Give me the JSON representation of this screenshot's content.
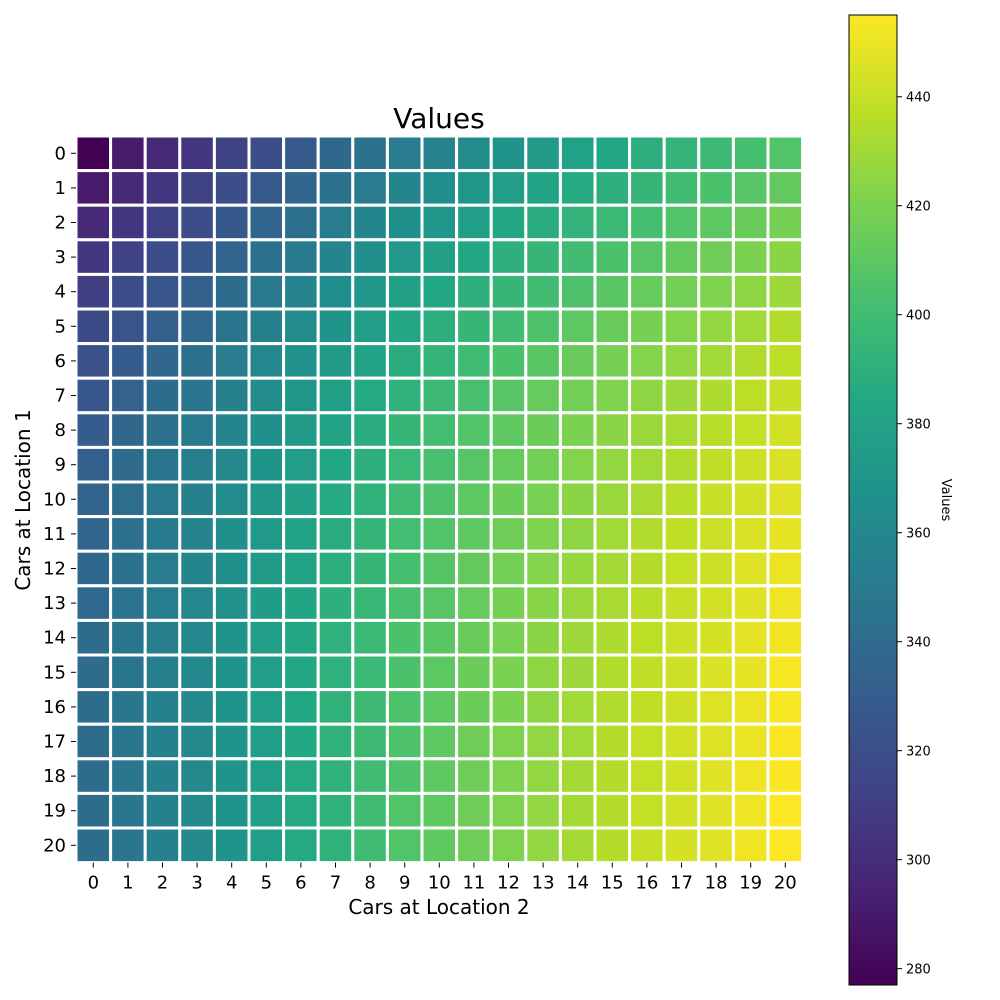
{
  "chart_data": [
    {
      "type": "heatmap",
      "title": "Values",
      "xlabel": "Cars at Location 2",
      "ylabel": "Cars at Location 1",
      "x_categories": [
        "0",
        "1",
        "2",
        "3",
        "4",
        "5",
        "6",
        "7",
        "8",
        "9",
        "10",
        "11",
        "12",
        "13",
        "14",
        "15",
        "16",
        "17",
        "18",
        "19",
        "20"
      ],
      "y_categories": [
        "0",
        "1",
        "2",
        "3",
        "4",
        "5",
        "6",
        "7",
        "8",
        "9",
        "10",
        "11",
        "12",
        "13",
        "14",
        "15",
        "16",
        "17",
        "18",
        "19",
        "20"
      ],
      "colormap": "viridis",
      "value_range": [
        277,
        455
      ],
      "grid_line_color": "#ffffff",
      "values": [
        [
          277,
          290,
          298,
          305,
          312,
          320,
          328,
          337,
          344,
          351,
          357,
          363,
          368,
          374,
          379,
          384,
          389,
          393,
          398,
          402,
          406
        ],
        [
          290,
          298,
          305,
          312,
          320,
          328,
          336,
          344,
          351,
          358,
          364,
          370,
          376,
          381,
          386,
          390,
          395,
          400,
          404,
          408,
          412
        ],
        [
          298,
          305,
          312,
          319,
          327,
          335,
          343,
          351,
          358,
          365,
          371,
          377,
          383,
          388,
          393,
          397,
          402,
          406,
          410,
          414,
          418
        ],
        [
          305,
          312,
          319,
          326,
          334,
          342,
          350,
          358,
          365,
          372,
          378,
          384,
          390,
          395,
          400,
          404,
          408,
          412,
          416,
          420,
          424
        ],
        [
          311,
          318,
          325,
          332,
          340,
          348,
          356,
          364,
          371,
          378,
          384,
          390,
          395,
          400,
          405,
          409,
          413,
          417,
          421,
          425,
          429
        ],
        [
          317,
          324,
          331,
          338,
          346,
          354,
          362,
          369,
          376,
          383,
          389,
          395,
          400,
          405,
          410,
          414,
          418,
          422,
          426,
          430,
          434
        ],
        [
          322,
          329,
          336,
          343,
          351,
          359,
          367,
          374,
          381,
          388,
          394,
          399,
          404,
          409,
          414,
          418,
          422,
          426,
          430,
          434,
          437
        ],
        [
          326,
          333,
          340,
          347,
          355,
          363,
          371,
          378,
          385,
          392,
          398,
          403,
          408,
          413,
          417,
          421,
          425,
          429,
          433,
          437,
          440
        ],
        [
          329,
          336,
          343,
          350,
          358,
          366,
          374,
          381,
          388,
          395,
          401,
          406,
          411,
          415,
          420,
          424,
          428,
          432,
          436,
          439,
          443
        ],
        [
          332,
          339,
          346,
          353,
          361,
          369,
          376,
          384,
          390,
          397,
          403,
          408,
          413,
          417,
          422,
          426,
          430,
          434,
          438,
          441,
          445
        ],
        [
          334,
          341,
          348,
          355,
          363,
          371,
          378,
          386,
          392,
          399,
          405,
          410,
          415,
          419,
          424,
          428,
          432,
          436,
          440,
          443,
          447
        ],
        [
          336,
          343,
          350,
          357,
          365,
          373,
          380,
          388,
          394,
          401,
          406,
          411,
          416,
          421,
          425,
          430,
          434,
          438,
          441,
          445,
          449
        ],
        [
          337,
          344,
          351,
          358,
          366,
          374,
          381,
          389,
          395,
          402,
          407,
          412,
          417,
          422,
          427,
          431,
          435,
          439,
          442,
          446,
          450
        ],
        [
          338,
          345,
          352,
          359,
          367,
          375,
          382,
          390,
          396,
          403,
          408,
          413,
          418,
          423,
          428,
          432,
          436,
          440,
          443,
          447,
          451
        ],
        [
          339,
          346,
          353,
          360,
          368,
          376,
          383,
          391,
          397,
          404,
          409,
          414,
          419,
          424,
          429,
          433,
          437,
          441,
          444,
          448,
          452
        ],
        [
          339,
          346,
          353,
          360,
          368,
          376,
          383,
          391,
          397,
          404,
          410,
          415,
          420,
          425,
          429,
          434,
          438,
          442,
          445,
          449,
          453
        ],
        [
          340,
          347,
          354,
          361,
          369,
          377,
          384,
          392,
          398,
          405,
          410,
          415,
          420,
          425,
          430,
          434,
          438,
          442,
          446,
          450,
          453
        ],
        [
          340,
          347,
          354,
          361,
          369,
          377,
          384,
          392,
          398,
          405,
          411,
          416,
          421,
          426,
          430,
          435,
          439,
          443,
          446,
          450,
          454
        ],
        [
          340,
          347,
          354,
          361,
          369,
          377,
          385,
          392,
          399,
          405,
          411,
          416,
          421,
          426,
          431,
          435,
          439,
          443,
          447,
          451,
          454
        ],
        [
          340,
          347,
          354,
          361,
          369,
          377,
          385,
          392,
          399,
          406,
          411,
          416,
          421,
          426,
          431,
          435,
          439,
          443,
          447,
          451,
          455
        ],
        [
          340,
          347,
          354,
          361,
          369,
          377,
          385,
          392,
          399,
          406,
          411,
          416,
          421,
          426,
          431,
          435,
          440,
          444,
          447,
          451,
          455
        ]
      ]
    },
    {
      "type": "colorbar",
      "label": "Values",
      "ticks": [
        280,
        300,
        320,
        340,
        360,
        380,
        400,
        420,
        440
      ],
      "range": [
        277,
        455
      ]
    }
  ]
}
